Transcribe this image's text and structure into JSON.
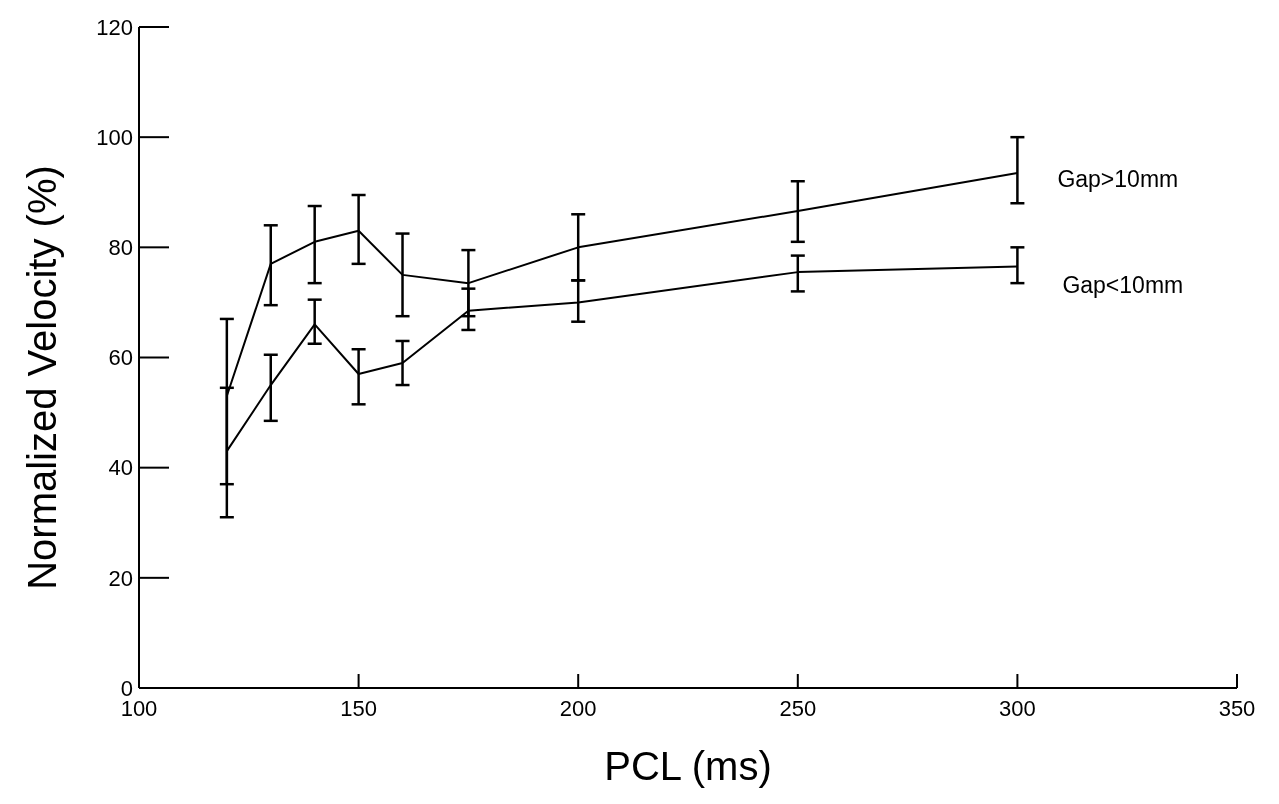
{
  "chart_data": {
    "type": "line",
    "xlabel": "PCL (ms)",
    "ylabel": "Normalized Velocity (%)",
    "x": [
      120,
      130,
      140,
      150,
      160,
      175,
      200,
      250,
      300
    ],
    "series": [
      {
        "name": "Gap>10mm",
        "color": "#000000",
        "values": [
          53,
          77,
          81,
          83,
          75,
          73.5,
          80,
          86.6,
          93.5
        ],
        "errors": [
          [
            37,
            67
          ],
          [
            69.5,
            84
          ],
          [
            73.5,
            87.5
          ],
          [
            77,
            89.5
          ],
          [
            67.5,
            82.5
          ],
          [
            67.5,
            79.5
          ],
          [
            74,
            86
          ],
          [
            81,
            92
          ],
          [
            88,
            100
          ]
        ]
      },
      {
        "name": "Gap<10mm",
        "color": "#000000",
        "values": [
          43,
          55,
          66,
          57,
          59,
          68.5,
          70,
          75.5,
          76.5
        ],
        "errors": [
          [
            31,
            54.5
          ],
          [
            48.5,
            60.5
          ],
          [
            62.5,
            70.5
          ],
          [
            51.5,
            61.5
          ],
          [
            55,
            63
          ],
          [
            65,
            72.5
          ],
          [
            66.5,
            74
          ],
          [
            72,
            78.5
          ],
          [
            73.5,
            80
          ]
        ]
      }
    ],
    "xlim": [
      100,
      350
    ],
    "xticks": [
      100,
      150,
      200,
      250,
      300,
      350
    ],
    "ylim": [
      0,
      120
    ],
    "yticks": [
      0,
      20,
      40,
      60,
      80,
      100,
      120
    ],
    "grid": false,
    "marker": "none",
    "line_style": "solid"
  }
}
